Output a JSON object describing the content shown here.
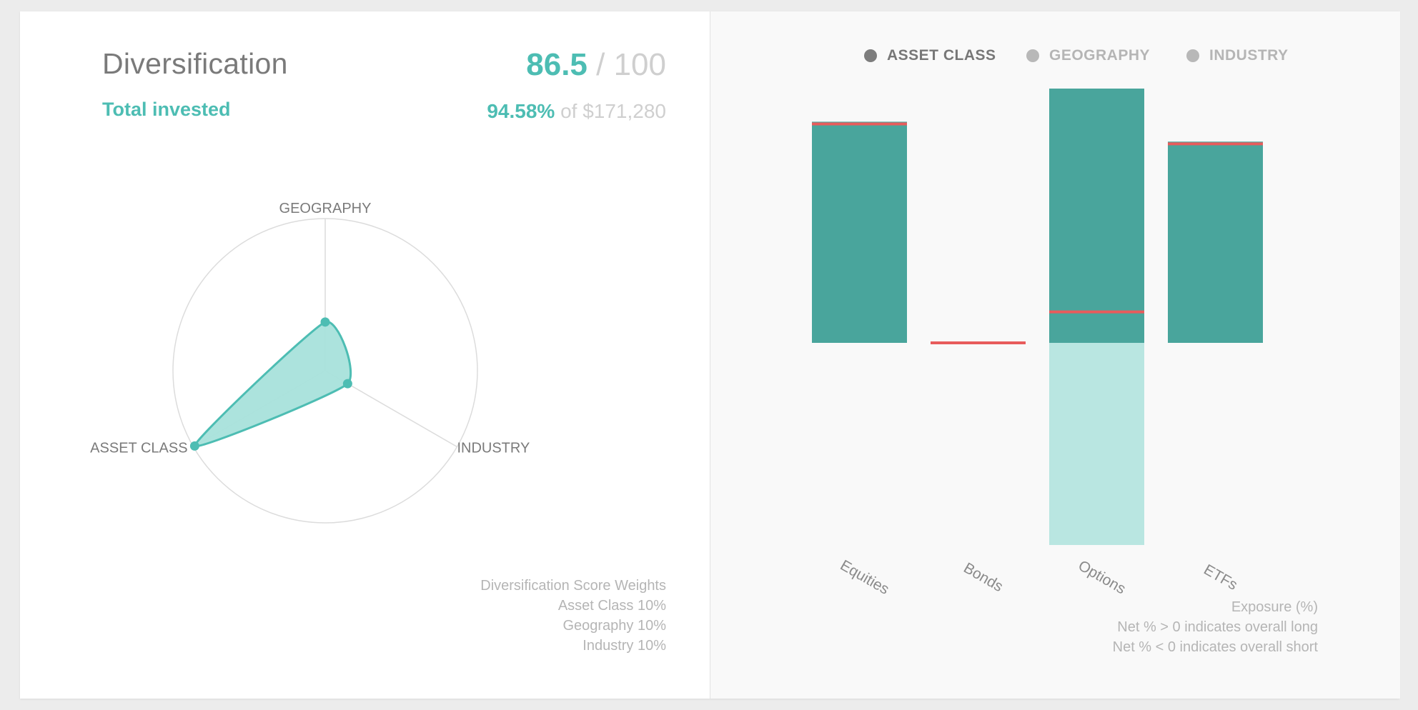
{
  "left": {
    "title": "Diversification",
    "score_value": "86.5",
    "score_total": " / 100",
    "subtitle": "Total invested",
    "invested_pct": "94.58%",
    "invested_of": " of $171,280",
    "notes": [
      "Diversification Score Weights",
      "Asset Class 10%",
      "Geography 10%",
      "Industry 10%"
    ]
  },
  "radar": {
    "axes": [
      "GEOGRAPHY",
      "INDUSTRY",
      "ASSET CLASS"
    ],
    "values": [
      0.32,
      0.17,
      0.99
    ],
    "max": 1,
    "fill_color": "#a8e1db",
    "stroke_color": "#4dbdb3"
  },
  "legend": {
    "items": [
      {
        "label": "ASSET CLASS",
        "active": true
      },
      {
        "label": "GEOGRAPHY",
        "active": false
      },
      {
        "label": "INDUSTRY",
        "active": false
      }
    ]
  },
  "chart_data": {
    "type": "bar",
    "categories": [
      "Equities",
      "Bonds",
      "Options",
      "ETFs"
    ],
    "series": [
      {
        "values": [
          100,
          0,
          115,
          91
        ]
      },
      {
        "values": [
          0,
          0,
          -100,
          0
        ]
      }
    ],
    "net": [
      99,
      0,
      14,
      90
    ],
    "ylim": [
      -100,
      115
    ],
    "colors": {
      "long": "#49a59c",
      "short": "#b9e6e1",
      "net": "#e85c5c"
    }
  },
  "right_notes": [
    "Exposure (%)",
    "Net % > 0 indicates overall long",
    "Net % < 0 indicates overall short"
  ]
}
